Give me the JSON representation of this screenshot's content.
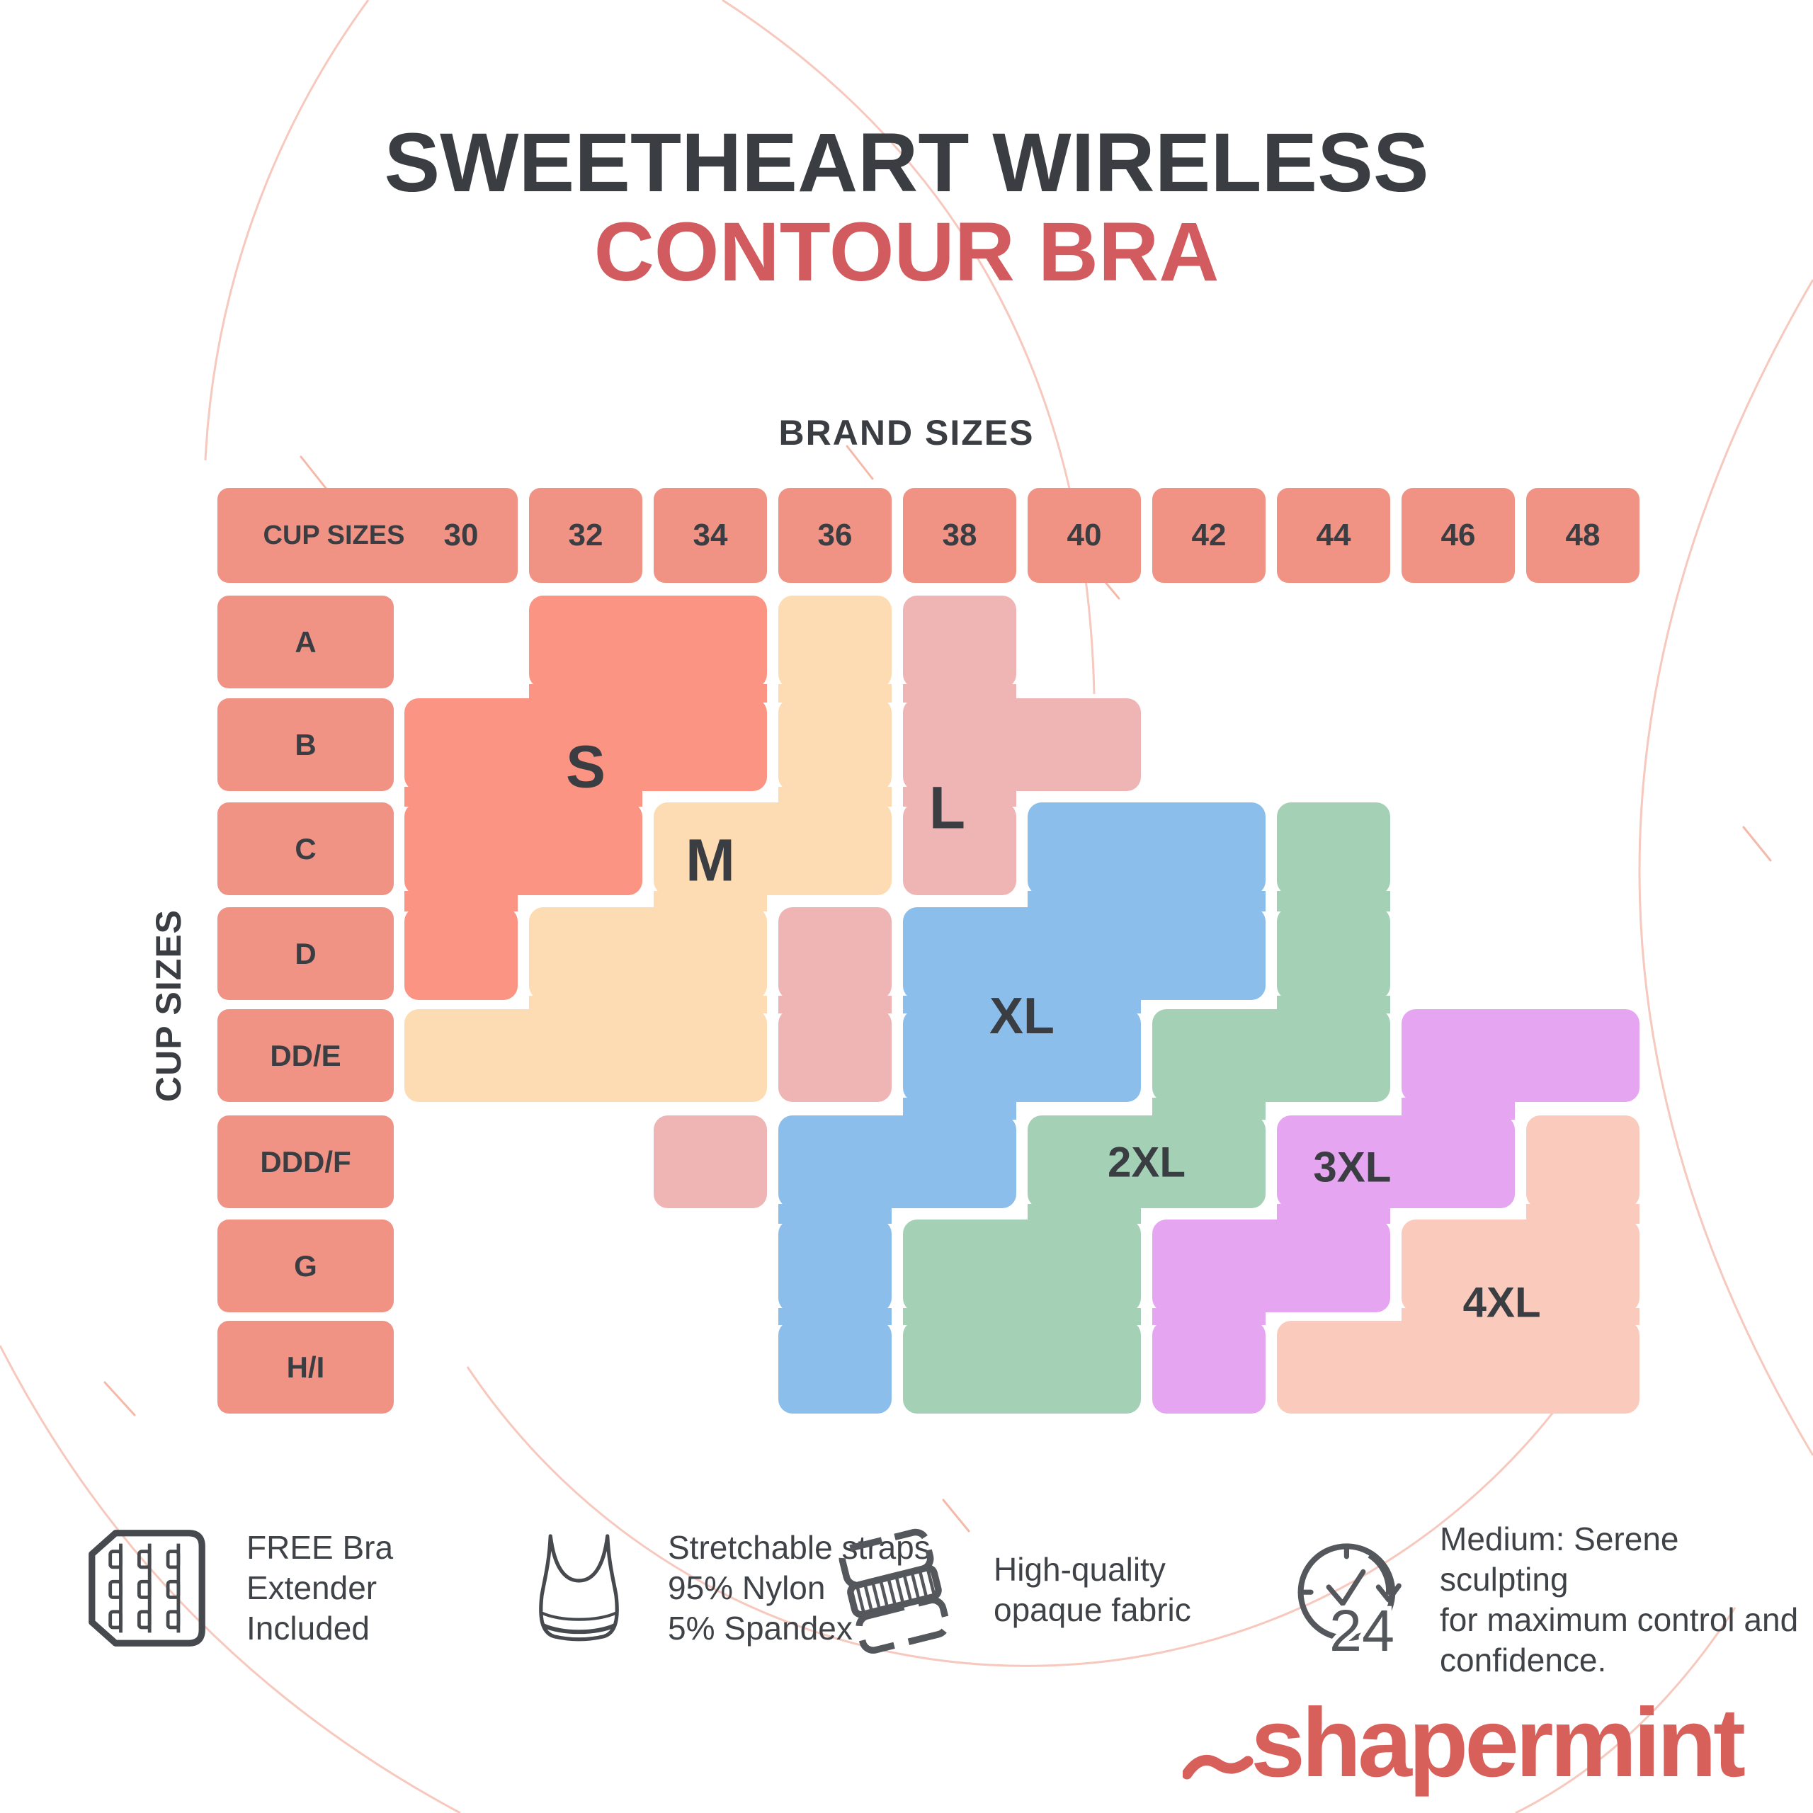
{
  "title": {
    "line1": "SWEETHEART WIRELESS",
    "line2": "CONTOUR BRA",
    "line2_color": "#D15B5E"
  },
  "table": {
    "top_axis_label": "BRAND SIZES",
    "left_axis_label": "CUP SIZES",
    "corner_label": "CUP SIZES",
    "header_fill": "#F09384",
    "header_text_color": "#3A3E43"
  },
  "chart_data": {
    "type": "heatmap",
    "title": "SWEETHEART WIRELESS CONTOUR BRA",
    "x_axis_label": "BRAND SIZES",
    "y_axis_label": "CUP SIZES",
    "columns": [
      "30",
      "32",
      "34",
      "36",
      "38",
      "40",
      "42",
      "44",
      "46",
      "48"
    ],
    "rows": [
      "A",
      "B",
      "C",
      "D",
      "DD/E",
      "DDD/F",
      "G",
      "H/I"
    ],
    "matrix": [
      [
        "",
        "S",
        "S",
        "M",
        "L",
        "",
        "",
        "",
        "",
        ""
      ],
      [
        "S",
        "S",
        "S",
        "M",
        "L",
        "L",
        "",
        "",
        "",
        ""
      ],
      [
        "S",
        "S",
        "M",
        "M",
        "L",
        "XL",
        "XL",
        "2XL",
        "",
        ""
      ],
      [
        "S",
        "M",
        "M",
        "L",
        "XL",
        "XL",
        "XL",
        "2XL",
        "",
        ""
      ],
      [
        "M",
        "M",
        "M",
        "L",
        "XL",
        "XL",
        "2XL",
        "2XL",
        "3XL",
        "3XL"
      ],
      [
        "",
        "",
        "L",
        "XL",
        "XL",
        "2XL",
        "2XL",
        "3XL",
        "3XL",
        "4XL"
      ],
      [
        "",
        "",
        "",
        "XL",
        "2XL",
        "2XL",
        "3XL",
        "3XL",
        "4XL",
        "4XL"
      ],
      [
        "",
        "",
        "",
        "XL",
        "2XL",
        "2XL",
        "3XL",
        "4XL",
        "4XL",
        "4XL"
      ]
    ],
    "sizes": [
      {
        "label": "S",
        "color": "#FB9483",
        "runs": {
          "0": [
            1,
            2
          ],
          "1": [
            0,
            2
          ],
          "2": [
            0,
            1
          ],
          "3": [
            0,
            0
          ]
        },
        "anchor": {
          "col": 1.0,
          "row": 1.2
        }
      },
      {
        "label": "M",
        "color": "#FEDCB3",
        "runs": {
          "0": [
            3,
            3
          ],
          "1": [
            3,
            3
          ],
          "2": [
            2,
            3
          ],
          "3": [
            1,
            2
          ],
          "4": [
            0,
            2
          ]
        },
        "anchor": {
          "col": 2.0,
          "row": 2.1
        }
      },
      {
        "label": "L",
        "color": "#EFB5B5",
        "runs": {
          "0": [
            4,
            4
          ],
          "1": [
            4,
            5
          ],
          "2": [
            4,
            4
          ],
          "3": [
            3,
            3
          ],
          "4": [
            3,
            3
          ],
          "5": [
            2,
            2
          ]
        },
        "anchor": {
          "col": 3.9,
          "row": 1.6
        }
      },
      {
        "label": "XL",
        "color": "#8CBEEB",
        "runs": {
          "2": [
            5,
            6
          ],
          "3": [
            4,
            6
          ],
          "4": [
            4,
            5
          ],
          "5": [
            3,
            4
          ],
          "6": [
            3,
            3
          ],
          "7": [
            3,
            3
          ]
        },
        "anchor": {
          "col": 4.5,
          "row": 3.6
        }
      },
      {
        "label": "2XL",
        "color": "#A4D0B5",
        "runs": {
          "2": [
            7,
            7
          ],
          "3": [
            7,
            7
          ],
          "4": [
            6,
            7
          ],
          "5": [
            5,
            6
          ],
          "6": [
            4,
            5
          ],
          "7": [
            4,
            5
          ]
        },
        "anchor": {
          "col": 5.5,
          "row": 5.0
        }
      },
      {
        "label": "3XL",
        "color": "#E6A5F1",
        "runs": {
          "4": [
            8,
            9
          ],
          "5": [
            7,
            8
          ],
          "6": [
            6,
            7
          ],
          "7": [
            6,
            6
          ]
        },
        "anchor": {
          "col": 7.15,
          "row": 5.05
        }
      },
      {
        "label": "4XL",
        "color": "#FACBBC",
        "runs": {
          "5": [
            9,
            9
          ],
          "6": [
            8,
            9
          ],
          "7": [
            7,
            9
          ]
        },
        "anchor": {
          "col": 8.35,
          "row": 6.35
        }
      }
    ],
    "legend_position": "in-plot",
    "grid": "off"
  },
  "features": [
    {
      "icon": "bra-extender-icon",
      "text": "FREE Bra\nExtender\nIncluded"
    },
    {
      "icon": "bra-top-icon",
      "text": "Stretchable straps\n95% Nylon\n5% Spandex"
    },
    {
      "icon": "fabric-layers-icon",
      "text": "High-quality\nopaque fabric"
    },
    {
      "icon": "clock-24-icon",
      "text": "Medium: Serene sculpting\nfor maximum control and\nconfidence.",
      "icon_number": "24"
    }
  ],
  "logo": {
    "text": "shapermint",
    "color": "#D8605B"
  }
}
